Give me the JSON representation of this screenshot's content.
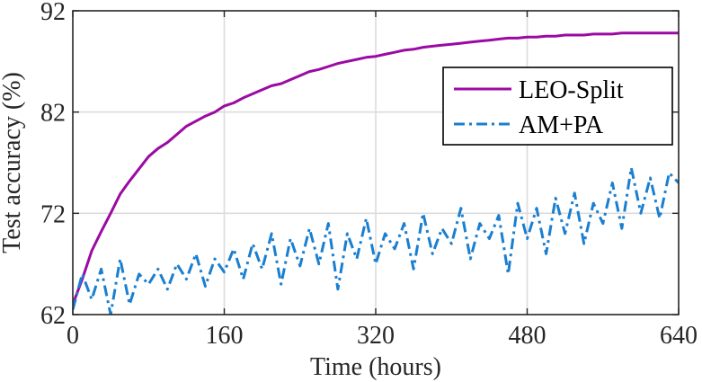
{
  "chart_data": {
    "type": "line",
    "xlabel": "Time (hours)",
    "ylabel": "Test accuracy (%)",
    "xlim": [
      0,
      640
    ],
    "ylim": [
      62,
      92
    ],
    "xticks": [
      0,
      160,
      320,
      480,
      640
    ],
    "yticks": [
      62,
      72,
      82,
      92
    ],
    "x_tick_labels": [
      "0",
      "160",
      "320",
      "480",
      "640"
    ],
    "y_tick_labels": [
      "62",
      "72",
      "82",
      "92"
    ],
    "grid": true,
    "legend_position": "top-right",
    "series": [
      {
        "name": "LEO-Split",
        "color": "#9b0aa3",
        "line_style": "solid",
        "x": [
          0,
          10,
          20,
          30,
          40,
          50,
          60,
          70,
          80,
          90,
          100,
          110,
          120,
          130,
          140,
          150,
          160,
          170,
          180,
          190,
          200,
          210,
          220,
          230,
          240,
          250,
          260,
          270,
          280,
          290,
          300,
          310,
          320,
          330,
          340,
          350,
          360,
          370,
          380,
          390,
          400,
          410,
          420,
          430,
          440,
          450,
          460,
          470,
          480,
          490,
          500,
          510,
          520,
          530,
          540,
          550,
          560,
          570,
          580,
          590,
          600,
          610,
          620,
          630,
          640
        ],
        "y": [
          63.0,
          65.5,
          68.3,
          70.2,
          72.0,
          73.9,
          75.2,
          76.4,
          77.6,
          78.4,
          79.0,
          79.8,
          80.6,
          81.1,
          81.6,
          82.0,
          82.6,
          82.9,
          83.4,
          83.8,
          84.2,
          84.6,
          84.8,
          85.2,
          85.6,
          86.0,
          86.2,
          86.5,
          86.8,
          87.0,
          87.2,
          87.4,
          87.5,
          87.7,
          87.9,
          88.1,
          88.2,
          88.4,
          88.5,
          88.6,
          88.7,
          88.8,
          88.9,
          89.0,
          89.1,
          89.2,
          89.3,
          89.3,
          89.4,
          89.4,
          89.5,
          89.5,
          89.6,
          89.6,
          89.6,
          89.7,
          89.7,
          89.7,
          89.8,
          89.8,
          89.8,
          89.8,
          89.8,
          89.8,
          89.8
        ]
      },
      {
        "name": "AM+PA",
        "color": "#1a7fd0",
        "line_style": "dash-dot",
        "x": [
          0,
          10,
          20,
          30,
          40,
          50,
          60,
          70,
          80,
          90,
          100,
          110,
          120,
          130,
          140,
          150,
          160,
          170,
          180,
          190,
          200,
          210,
          220,
          230,
          240,
          250,
          260,
          270,
          280,
          290,
          300,
          310,
          320,
          330,
          340,
          350,
          360,
          370,
          380,
          390,
          400,
          410,
          420,
          430,
          440,
          450,
          460,
          470,
          480,
          490,
          500,
          510,
          520,
          530,
          540,
          550,
          560,
          570,
          580,
          590,
          600,
          610,
          620,
          630,
          640
        ],
        "y": [
          62.5,
          66.0,
          63.5,
          66.5,
          62.0,
          67.5,
          63.0,
          66.0,
          65.0,
          66.5,
          64.5,
          67.0,
          65.5,
          68.0,
          64.8,
          67.5,
          66.2,
          68.5,
          65.5,
          69.0,
          66.5,
          70.0,
          65.0,
          69.5,
          66.8,
          70.5,
          67.0,
          71.0,
          64.5,
          70.0,
          67.5,
          71.5,
          67.0,
          70.0,
          68.5,
          71.0,
          66.5,
          72.0,
          68.0,
          70.5,
          69.0,
          72.5,
          67.5,
          71.0,
          69.5,
          71.8,
          66.0,
          73.0,
          69.5,
          72.5,
          68.0,
          73.5,
          70.0,
          74.0,
          69.0,
          73.0,
          71.0,
          75.0,
          70.5,
          76.5,
          72.0,
          75.5,
          71.5,
          76.0,
          75.0
        ]
      }
    ]
  }
}
